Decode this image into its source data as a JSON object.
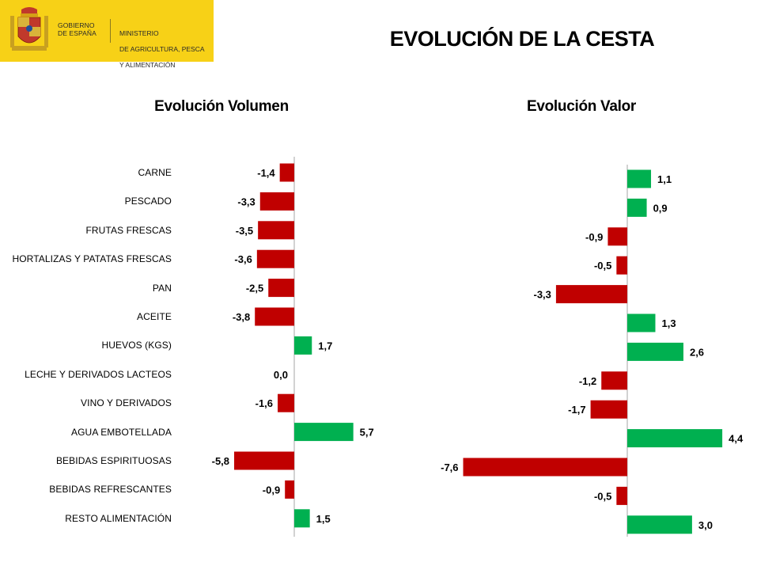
{
  "header": {
    "gov_lines": [
      "GOBIERNO",
      "DE ESPAÑA"
    ],
    "ministry_lines": [
      "MINISTERIO",
      "DE AGRICULTURA, PESCA",
      "Y ALIMENTACIÓN"
    ],
    "brand_color": "#f7d117"
  },
  "title": "EVOLUCIÓN DE LA CESTA",
  "colors": {
    "positive": "#00b050",
    "negative": "#c00000"
  },
  "chart_data": [
    {
      "type": "bar",
      "orientation": "horizontal",
      "title": "Evolución Volumen",
      "categories": [
        "CARNE",
        "PESCADO",
        "FRUTAS FRESCAS",
        "HORTALIZAS Y PATATAS FRESCAS",
        "PAN",
        "ACEITE",
        "HUEVOS (KGS)",
        "LECHE Y DERIVADOS LACTEOS",
        "VINO Y DERIVADOS",
        "AGUA EMBOTELLADA",
        "BEBIDAS ESPIRITUOSAS",
        "BEBIDAS REFRESCANTES",
        "RESTO ALIMENTACIÓN"
      ],
      "values": [
        -1.4,
        -3.3,
        -3.5,
        -3.6,
        -2.5,
        -3.8,
        1.7,
        0.0,
        -1.6,
        5.7,
        -5.8,
        -0.9,
        1.5
      ],
      "labels": [
        "-1,4",
        "-3,3",
        "-3,5",
        "-3,6",
        "-2,5",
        "-3,8",
        "1,7",
        "0,0",
        "-1,6",
        "5,7",
        "-5,8",
        "-0,9",
        "1,5"
      ],
      "xlim": [
        -7.5,
        7.5
      ]
    },
    {
      "type": "bar",
      "orientation": "horizontal",
      "title": "Evolución Valor",
      "categories": [
        "CARNE",
        "PESCADO",
        "FRUTAS FRESCAS",
        "HORTALIZAS Y PATATAS FRESCAS",
        "PAN",
        "ACEITE",
        "HUEVOS (KGS)",
        "LECHE Y DERIVADOS LACTEOS",
        "VINO Y DERIVADOS",
        "AGUA EMBOTELLADA",
        "BEBIDAS ESPIRITUOSAS",
        "BEBIDAS REFRESCANTES",
        "RESTO ALIMENTACIÓN"
      ],
      "values": [
        1.1,
        0.9,
        -0.9,
        -0.5,
        -3.3,
        1.3,
        2.6,
        -1.2,
        -1.7,
        4.4,
        -7.6,
        -0.5,
        3.0
      ],
      "labels": [
        "1,1",
        "0,9",
        "-0,9",
        "-0,5",
        "-3,3",
        "1,3",
        "2,6",
        "-1,2",
        "-1,7",
        "4,4",
        "-7,6",
        "-0,5",
        "3,0"
      ],
      "xlim": [
        -7.9,
        4.5
      ]
    }
  ]
}
